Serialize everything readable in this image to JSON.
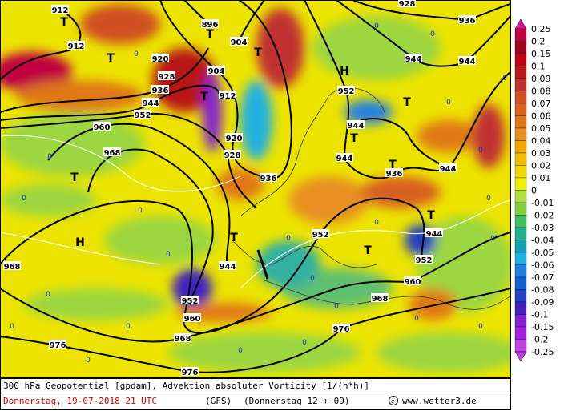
{
  "map": {
    "contour_labels": [
      "912",
      "912",
      "920",
      "928",
      "936",
      "944",
      "952",
      "960",
      "968",
      "968",
      "976",
      "976",
      "968",
      "960",
      "952",
      "944",
      "936",
      "928",
      "920",
      "912",
      "904",
      "904",
      "896",
      "952",
      "944",
      "944",
      "936",
      "944",
      "944",
      "952",
      "960",
      "968",
      "976",
      "952",
      "936",
      "944",
      "944",
      "928"
    ],
    "systems": [
      "T",
      "T",
      "T",
      "T",
      "T",
      "T",
      "T",
      "T",
      "T",
      "T",
      "T",
      "T",
      "H",
      "H"
    ],
    "zero_markers": [
      "0",
      "0",
      "0",
      "0",
      "0",
      "0",
      "0",
      "0",
      "0",
      "0",
      "0",
      "0",
      "0",
      "0",
      "0",
      "0",
      "0",
      "0",
      "0",
      "0",
      "0",
      "0",
      "0",
      "0"
    ]
  },
  "colorbar": {
    "labels": [
      "0.25",
      "0.2",
      "0.15",
      "0.1",
      "0.09",
      "0.08",
      "0.07",
      "0.06",
      "0.05",
      "0.04",
      "0.03",
      "0.02",
      "0.01",
      "0",
      "-0.01",
      "-0.02",
      "-0.03",
      "-0.04",
      "-0.05",
      "-0.06",
      "-0.07",
      "-0.08",
      "-0.09",
      "-0.1",
      "-0.15",
      "-0.2",
      "-0.25"
    ]
  },
  "footer": {
    "line1": "300 hPa Geopotential [gpdam], Advektion absoluter Vorticity [1/(h*h)]",
    "date": "Donnerstag, 19-07-2018  21 UTC",
    "model": "(GFS)",
    "run": "(Donnerstag 12 + 09)",
    "credit": "www.wetter3.de"
  }
}
